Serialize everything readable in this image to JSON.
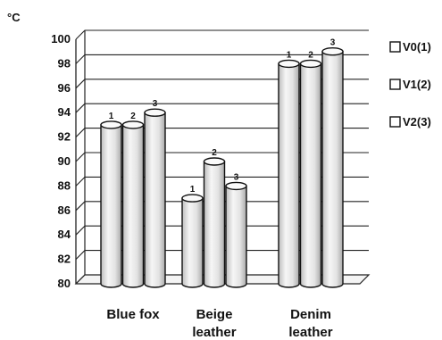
{
  "chart_data": {
    "type": "bar",
    "title": "",
    "ylabel": "°C",
    "xlabel": "",
    "ylim": [
      80,
      100
    ],
    "yticks": [
      80,
      82,
      84,
      86,
      88,
      90,
      92,
      94,
      96,
      98,
      100
    ],
    "categories": [
      [
        "Blue fox"
      ],
      [
        "Beige",
        "leather"
      ],
      [
        "Denim",
        "leather"
      ]
    ],
    "series": [
      {
        "name": "V0(1)",
        "label": "1",
        "values": [
          93,
          87,
          98
        ]
      },
      {
        "name": "V1(2)",
        "label": "2",
        "values": [
          93,
          90,
          98
        ]
      },
      {
        "name": "V2(3)",
        "label": "3",
        "values": [
          94,
          88,
          99
        ]
      }
    ],
    "grid": true,
    "legend_position": "right",
    "style": "3d-cylinder",
    "colors": {
      "bar_fill": "#e8e8e8",
      "bar_edge": "#111111",
      "grid": "#222222"
    }
  }
}
